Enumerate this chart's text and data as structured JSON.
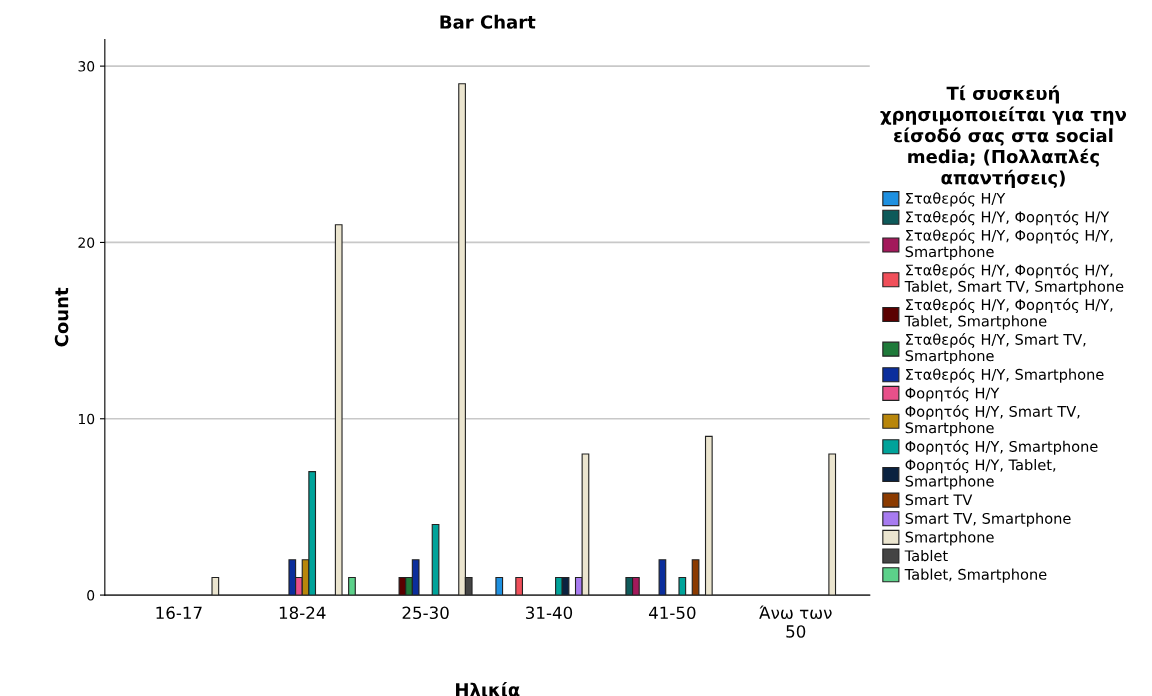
{
  "chart_data": {
    "type": "bar",
    "title": "Bar Chart",
    "xlabel": "Ηλικία",
    "ylabel": "Count",
    "legend_title": "Τί συσκευή χρησιμοποιείται για την είσοδό σας στα social media; (Πολλαπλές απαντήσεις)",
    "categories": [
      "16-17",
      "18-24",
      "25-30",
      "31-40",
      "41-50",
      "Άνω των 50"
    ],
    "ylim": [
      0,
      31.5
    ],
    "yticks": [
      0,
      10,
      20,
      30
    ],
    "grid": "y",
    "legend": "right",
    "series": [
      {
        "name": "Σταθερός Η/Υ",
        "color": "#1e90e0",
        "values": [
          null,
          null,
          null,
          1,
          null,
          null
        ]
      },
      {
        "name": "Σταθερός Η/Υ, Φορητός Η/Υ",
        "color": "#0e5a5a",
        "values": [
          null,
          null,
          null,
          null,
          1,
          null
        ]
      },
      {
        "name": "Σταθερός Η/Υ, Φορητός Η/Υ, Smartphone",
        "color": "#a3195b",
        "values": [
          null,
          null,
          null,
          null,
          1,
          null
        ]
      },
      {
        "name": "Σταθερός Η/Υ, Φορητός Η/Υ, Tablet, Smart TV, Smartphone",
        "color": "#f04f5a",
        "values": [
          null,
          null,
          null,
          1,
          null,
          null
        ]
      },
      {
        "name": "Σταθερός Η/Υ, Φορητός Η/Υ, Tablet, Smartphone",
        "color": "#5a0000",
        "values": [
          null,
          null,
          1,
          null,
          null,
          null
        ]
      },
      {
        "name": "Σταθερός Η/Υ, Smart TV, Smartphone",
        "color": "#1f7a3a",
        "values": [
          null,
          null,
          1,
          null,
          null,
          null
        ]
      },
      {
        "name": "Σταθερός Η/Υ, Smartphone",
        "color": "#0b2e9c",
        "values": [
          null,
          2,
          2,
          null,
          2,
          null
        ]
      },
      {
        "name": "Φορητός Η/Υ",
        "color": "#e8508a",
        "values": [
          null,
          1,
          null,
          null,
          null,
          null
        ]
      },
      {
        "name": "Φορητός Η/Υ, Smart TV, Smartphone",
        "color": "#b8860b",
        "values": [
          null,
          2,
          null,
          null,
          null,
          null
        ]
      },
      {
        "name": "Φορητός Η/Υ, Smartphone",
        "color": "#00a39a",
        "values": [
          null,
          7,
          4,
          1,
          1,
          null
        ]
      },
      {
        "name": "Φορητός Η/Υ, Tablet, Smartphone",
        "color": "#0a2240",
        "values": [
          null,
          null,
          null,
          1,
          null,
          null
        ]
      },
      {
        "name": "Smart TV",
        "color": "#8b3a00",
        "values": [
          null,
          null,
          null,
          null,
          2,
          null
        ]
      },
      {
        "name": "Smart TV, Smartphone",
        "color": "#a77bf0",
        "values": [
          null,
          null,
          null,
          1,
          null,
          null
        ]
      },
      {
        "name": "Smartphone",
        "color": "#ebe5cf",
        "values": [
          1,
          21,
          29,
          8,
          9,
          8
        ]
      },
      {
        "name": "Tablet",
        "color": "#444444",
        "values": [
          null,
          null,
          1,
          null,
          null,
          null
        ]
      },
      {
        "name": "Tablet, Smartphone",
        "color": "#5cd18a",
        "values": [
          null,
          1,
          null,
          null,
          null,
          null
        ]
      }
    ]
  }
}
